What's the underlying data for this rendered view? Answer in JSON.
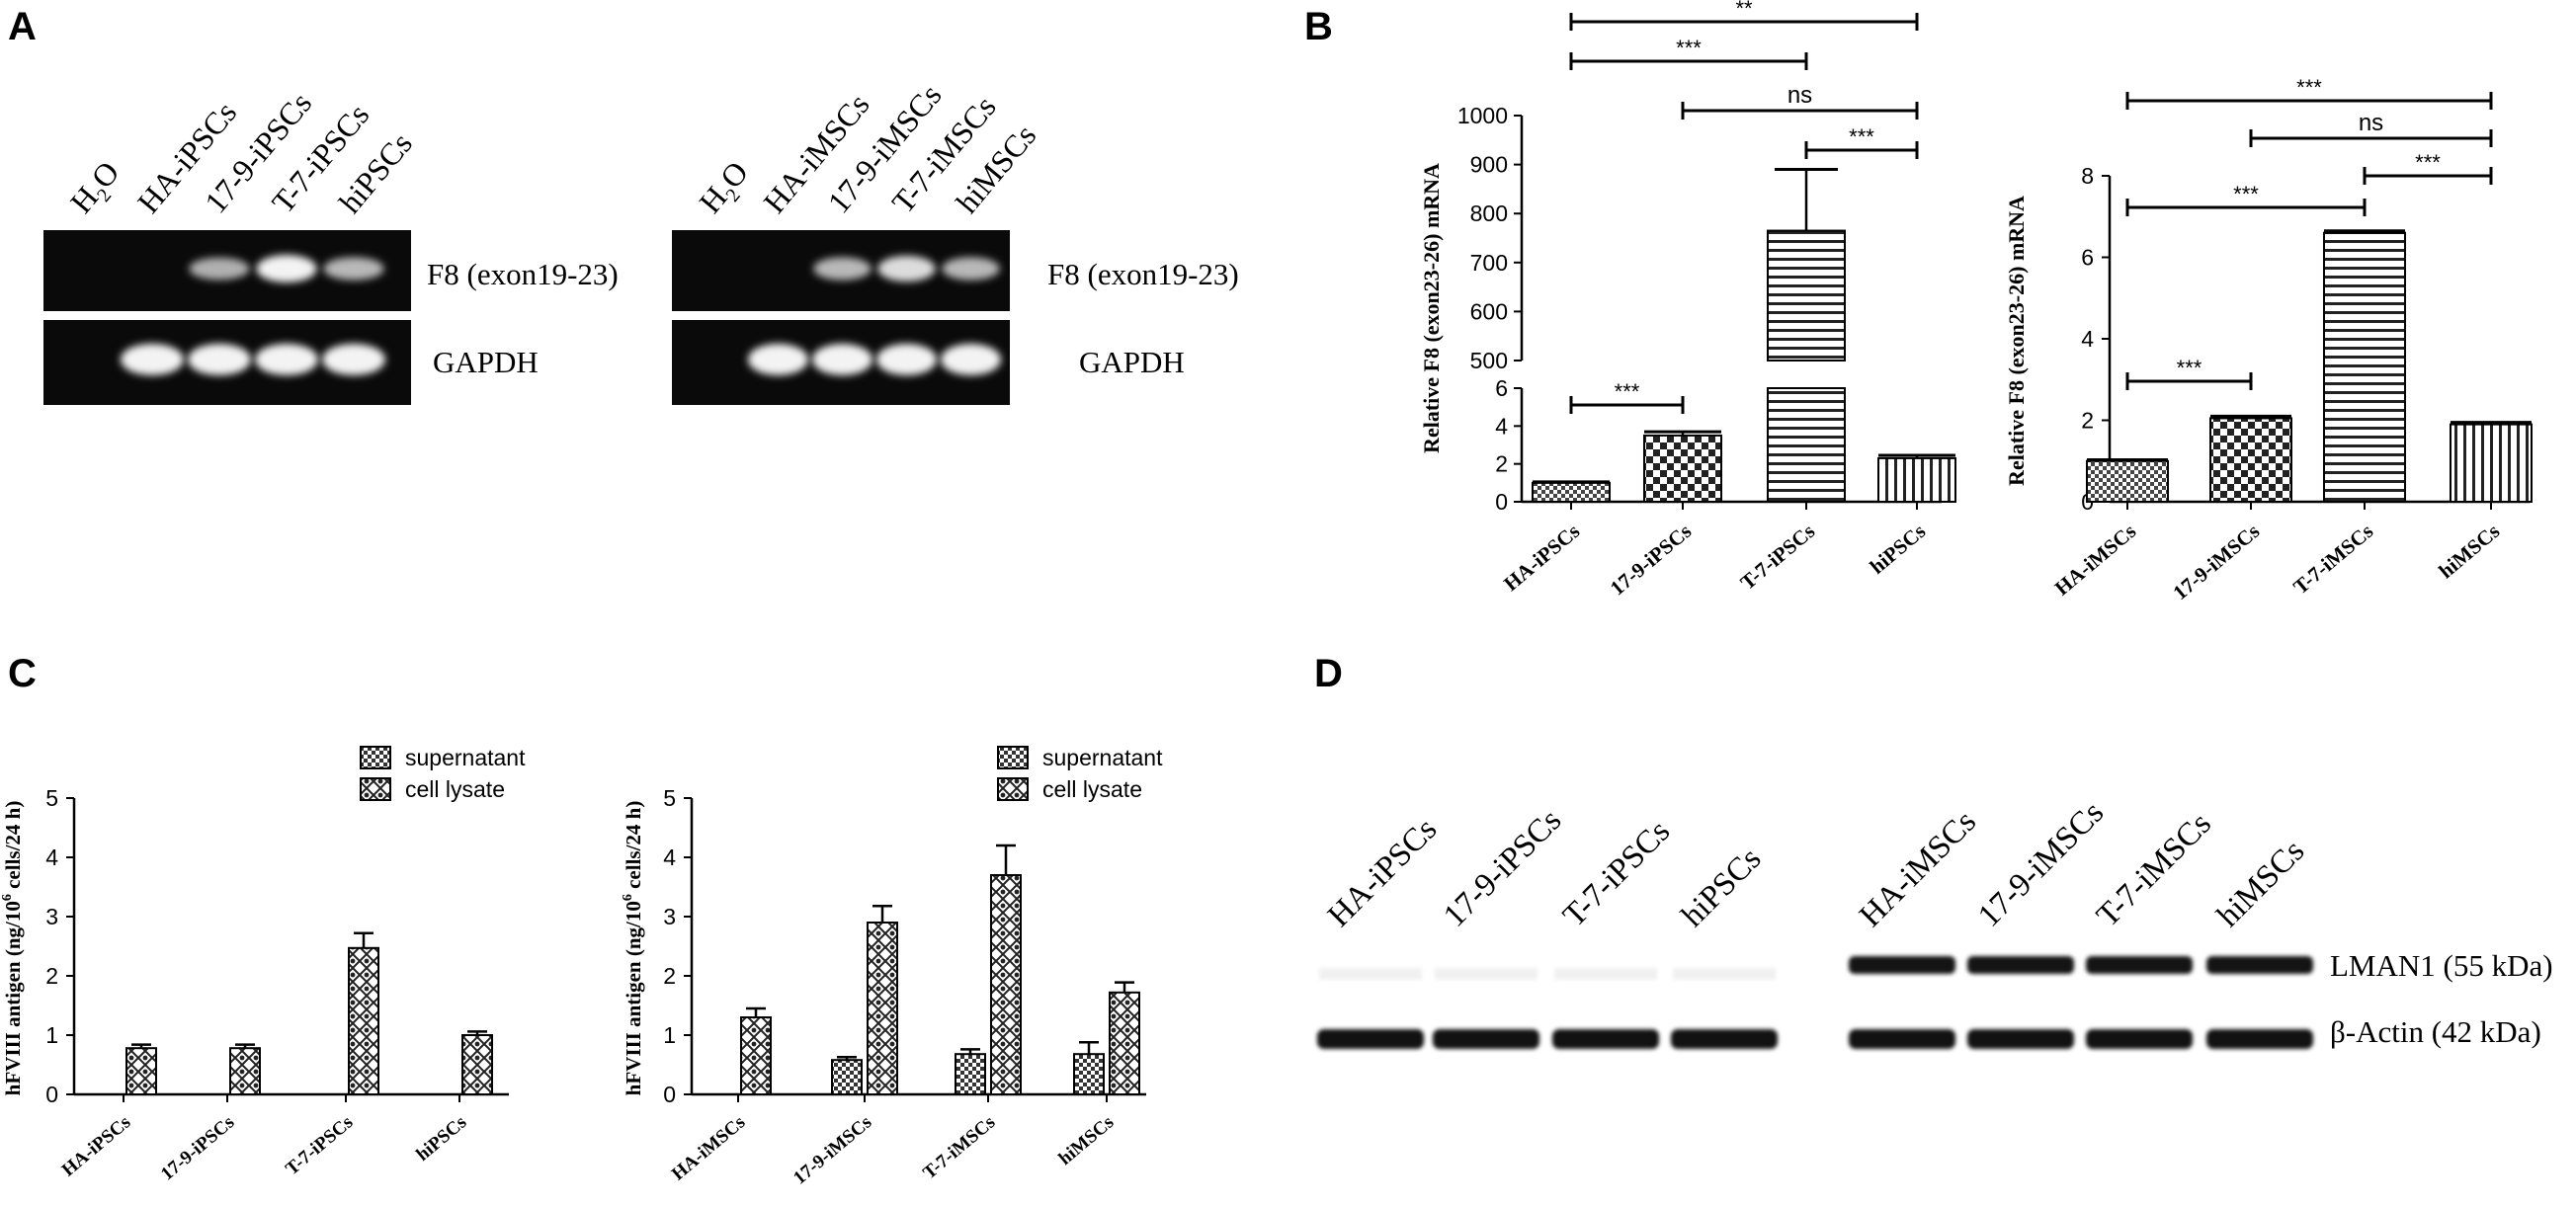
{
  "panels": {
    "A": {
      "letter": "A",
      "left_gel": {
        "lanes": [
          "H2O",
          "HA-iPSCs",
          "17-9-iPSCs",
          "T-7-iPSCs",
          "hiPSCs"
        ],
        "h2o": {
          "main": "H",
          "sub": "2",
          "tail": "O"
        },
        "bands": [
          "F8 (exon19-23)",
          "GAPDH"
        ],
        "f8_intensity": [
          0,
          0,
          0.55,
          1.0,
          0.6
        ],
        "gapdh_intensity": [
          0,
          1,
          1,
          1,
          1
        ]
      },
      "right_gel": {
        "lanes": [
          "H2O",
          "HA-iMSCs",
          "17-9-iMSCs",
          "T-7-iMSCs",
          "hiMSCs"
        ],
        "h2o": {
          "main": "H",
          "sub": "2",
          "tail": "O"
        },
        "bands": [
          "F8 (exon19-23)",
          "GAPDH"
        ],
        "f8_intensity": [
          0,
          0,
          0.6,
          0.85,
          0.6
        ],
        "gapdh_intensity": [
          0,
          1,
          1,
          1,
          1
        ]
      }
    },
    "B": {
      "letter": "B"
    },
    "C": {
      "letter": "C"
    },
    "D": {
      "letter": "D",
      "lanes": [
        "HA-iPSCs",
        "17-9-iPSCs",
        "T-7-iPSCs",
        "hiPSCs",
        "HA-iMSCs",
        "17-9-iMSCs",
        "T-7-iMSCs",
        "hiMSCs"
      ],
      "bands": [
        "LMAN1 (55 kDa)",
        "β-Actin (42 kDa)"
      ],
      "lman1_intensity": [
        0.05,
        0.05,
        0.05,
        0.05,
        1,
        1,
        1,
        1
      ],
      "actin_intensity": [
        1,
        1,
        1,
        1,
        1,
        1,
        1,
        1
      ]
    }
  },
  "chart_data": [
    {
      "id": "B-left",
      "type": "bar",
      "ylabel": "Relative F8 (exon23-26) mRNA",
      "categories": [
        "HA-iPSCs",
        "17-9-iPSCs",
        "T-7-iPSCs",
        "hiPSCs"
      ],
      "values": [
        1.0,
        3.5,
        765,
        2.3
      ],
      "errors": [
        0.05,
        0.2,
        125,
        0.15
      ],
      "patterns": [
        "dots",
        "checker",
        "hlines",
        "vlines"
      ],
      "broken_axis": {
        "lower": [
          0,
          6
        ],
        "upper": [
          500,
          1000
        ]
      },
      "lower_ticks": [
        0,
        2,
        4,
        6
      ],
      "upper_ticks": [
        500,
        600,
        700,
        800,
        900,
        1000
      ],
      "significance": [
        {
          "from": 0,
          "to": 3,
          "label": "**"
        },
        {
          "from": 0,
          "to": 2,
          "label": "***"
        },
        {
          "from": 1,
          "to": 3,
          "label": "ns"
        },
        {
          "from": 2,
          "to": 3,
          "label": "***"
        },
        {
          "from": 0,
          "to": 1,
          "label": "***"
        }
      ]
    },
    {
      "id": "B-right",
      "type": "bar",
      "ylabel": "Relative F8 (exon23-26) mRNA",
      "categories": [
        "HA-iMSCs",
        "17-9-iMSCs",
        "T-7-iMSCs",
        "hiMSCs"
      ],
      "values": [
        1.0,
        2.05,
        6.6,
        1.9
      ],
      "errors": [
        0.03,
        0.05,
        0.05,
        0.05
      ],
      "patterns": [
        "dots",
        "checker",
        "hlines",
        "vlines"
      ],
      "ylim": [
        0,
        8
      ],
      "ticks": [
        0,
        2,
        4,
        6,
        8
      ],
      "significance": [
        {
          "from": 0,
          "to": 3,
          "label": "***"
        },
        {
          "from": 1,
          "to": 3,
          "label": "ns"
        },
        {
          "from": 2,
          "to": 3,
          "label": "***"
        },
        {
          "from": 0,
          "to": 2,
          "label": "***"
        },
        {
          "from": 0,
          "to": 1,
          "label": "***"
        }
      ]
    },
    {
      "id": "C-left",
      "type": "bar",
      "ylabel_main": "hFVIII antigen (ng/10",
      "ylabel_sup": "6",
      "ylabel_tail": " cells/24 h)",
      "categories": [
        "HA-iPSCs",
        "17-9-iPSCs",
        "T-7-iPSCs",
        "hiPSCs"
      ],
      "series": [
        {
          "name": "supernatant",
          "values": [
            0,
            0,
            0,
            0
          ],
          "errors": [
            0,
            0,
            0,
            0
          ]
        },
        {
          "name": "cell lysate",
          "values": [
            0.78,
            0.78,
            2.47,
            1.0
          ],
          "errors": [
            0.06,
            0.06,
            0.25,
            0.06
          ]
        }
      ],
      "ylim": [
        0,
        5
      ],
      "ticks": [
        0,
        1,
        2,
        3,
        4,
        5
      ],
      "legend": "top-right"
    },
    {
      "id": "C-right",
      "type": "bar",
      "ylabel_main": "hFVIII antigen (ng/10",
      "ylabel_sup": "6",
      "ylabel_tail": " cells/24 h)",
      "categories": [
        "HA-iMSCs",
        "17-9-iMSCs",
        "T-7-iMSCs",
        "hiMSCs"
      ],
      "series": [
        {
          "name": "supernatant",
          "values": [
            0,
            0.58,
            0.68,
            0.68
          ],
          "errors": [
            0,
            0.05,
            0.08,
            0.2
          ]
        },
        {
          "name": "cell lysate",
          "values": [
            1.3,
            2.9,
            3.7,
            1.72
          ],
          "errors": [
            0.15,
            0.28,
            0.5,
            0.17
          ]
        }
      ],
      "ylim": [
        0,
        5
      ],
      "ticks": [
        0,
        1,
        2,
        3,
        4,
        5
      ],
      "legend": "top-right"
    }
  ]
}
